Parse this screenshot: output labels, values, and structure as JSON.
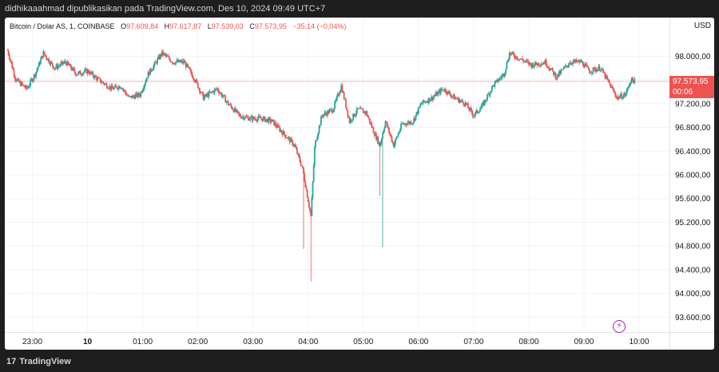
{
  "header": {
    "publish_text": "didhikaaahmad dipublikasikan pada TradingView.com, Des 10, 2024 09:49 UTC+7"
  },
  "legend": {
    "symbol": "Bitcoin / Dolar AS, 1, COINBASE",
    "o_key": "O",
    "o_val": "97.609,84",
    "h_key": "H",
    "h_val": "97.617,87",
    "l_key": "L",
    "l_val": "97.539,03",
    "c_key": "C",
    "c_val": "97.573,95",
    "change": "−35,14 (−0,04%)"
  },
  "currency": "USD",
  "price_tag": {
    "price": "97.573,95",
    "countdown": "00:06"
  },
  "footer": {
    "brand": "TradingView",
    "logo_mark": "17"
  },
  "colors": {
    "up": "#26a69a",
    "down": "#ef5350",
    "accent": "#9c27b0"
  },
  "icons": {
    "alert": "lightning-bolt-icon"
  },
  "chart_data": {
    "type": "candlestick",
    "y_ticks": [
      "98.000,00",
      "97.600,00",
      "97.200,00",
      "96.800,00",
      "96.400,00",
      "96.000,00",
      "95.600,00",
      "95.200,00",
      "94.800,00",
      "94.400,00",
      "94.000,00",
      "93.600,00"
    ],
    "y_tick_values": [
      98000,
      97600,
      97200,
      96800,
      96400,
      96000,
      95600,
      95200,
      94800,
      94400,
      94000,
      93600
    ],
    "x_ticks": [
      "23:00",
      "10",
      "01:00",
      "02:00",
      "03:00",
      "04:00",
      "05:00",
      "06:00",
      "07:00",
      "08:00",
      "09:00",
      "10:00"
    ],
    "x_tick_hours": [
      -1,
      0,
      1,
      2,
      3,
      4,
      5,
      6,
      7,
      8,
      9,
      10
    ],
    "x_range_hours": [
      -1.5,
      10.55
    ],
    "ylim": [
      93350,
      98650
    ],
    "last_price": 97573.95,
    "keypoints": [
      [
        -1.45,
        98100
      ],
      [
        -1.3,
        97600
      ],
      [
        -1.1,
        97450
      ],
      [
        -0.95,
        97700
      ],
      [
        -0.8,
        98050
      ],
      [
        -0.6,
        97800
      ],
      [
        -0.4,
        97900
      ],
      [
        -0.2,
        97700
      ],
      [
        0.0,
        97750
      ],
      [
        0.2,
        97600
      ],
      [
        0.45,
        97450
      ],
      [
        0.6,
        97500
      ],
      [
        0.75,
        97300
      ],
      [
        0.95,
        97350
      ],
      [
        1.1,
        97700
      ],
      [
        1.35,
        98050
      ],
      [
        1.55,
        97900
      ],
      [
        1.75,
        97900
      ],
      [
        1.95,
        97600
      ],
      [
        2.1,
        97300
      ],
      [
        2.35,
        97450
      ],
      [
        2.55,
        97200
      ],
      [
        2.75,
        97000
      ],
      [
        2.95,
        96950
      ],
      [
        3.15,
        96950
      ],
      [
        3.35,
        96900
      ],
      [
        3.55,
        96700
      ],
      [
        3.75,
        96500
      ],
      [
        3.9,
        96100
      ],
      [
        4.05,
        95300
      ],
      [
        4.12,
        96500
      ],
      [
        4.25,
        97000
      ],
      [
        4.45,
        97100
      ],
      [
        4.6,
        97500
      ],
      [
        4.75,
        96900
      ],
      [
        4.9,
        97100
      ],
      [
        5.05,
        97050
      ],
      [
        5.2,
        96700
      ],
      [
        5.3,
        96500
      ],
      [
        5.4,
        96900
      ],
      [
        5.55,
        96500
      ],
      [
        5.7,
        96850
      ],
      [
        5.9,
        96900
      ],
      [
        6.05,
        97200
      ],
      [
        6.25,
        97300
      ],
      [
        6.45,
        97450
      ],
      [
        6.65,
        97300
      ],
      [
        6.85,
        97200
      ],
      [
        7.0,
        97000
      ],
      [
        7.15,
        97150
      ],
      [
        7.35,
        97500
      ],
      [
        7.55,
        97700
      ],
      [
        7.65,
        98050
      ],
      [
        7.85,
        97950
      ],
      [
        8.05,
        97850
      ],
      [
        8.3,
        97900
      ],
      [
        8.5,
        97650
      ],
      [
        8.75,
        97900
      ],
      [
        8.95,
        97900
      ],
      [
        9.1,
        97750
      ],
      [
        9.3,
        97800
      ],
      [
        9.45,
        97550
      ],
      [
        9.6,
        97300
      ],
      [
        9.75,
        97350
      ],
      [
        9.85,
        97600
      ],
      [
        9.93,
        97574
      ]
    ],
    "spikes": [
      {
        "hour": 4.05,
        "low": 94200
      },
      {
        "hour": 3.92,
        "low": 94750
      },
      {
        "hour": 5.35,
        "low": 94780
      },
      {
        "hour": 5.3,
        "low": 95650
      }
    ]
  }
}
